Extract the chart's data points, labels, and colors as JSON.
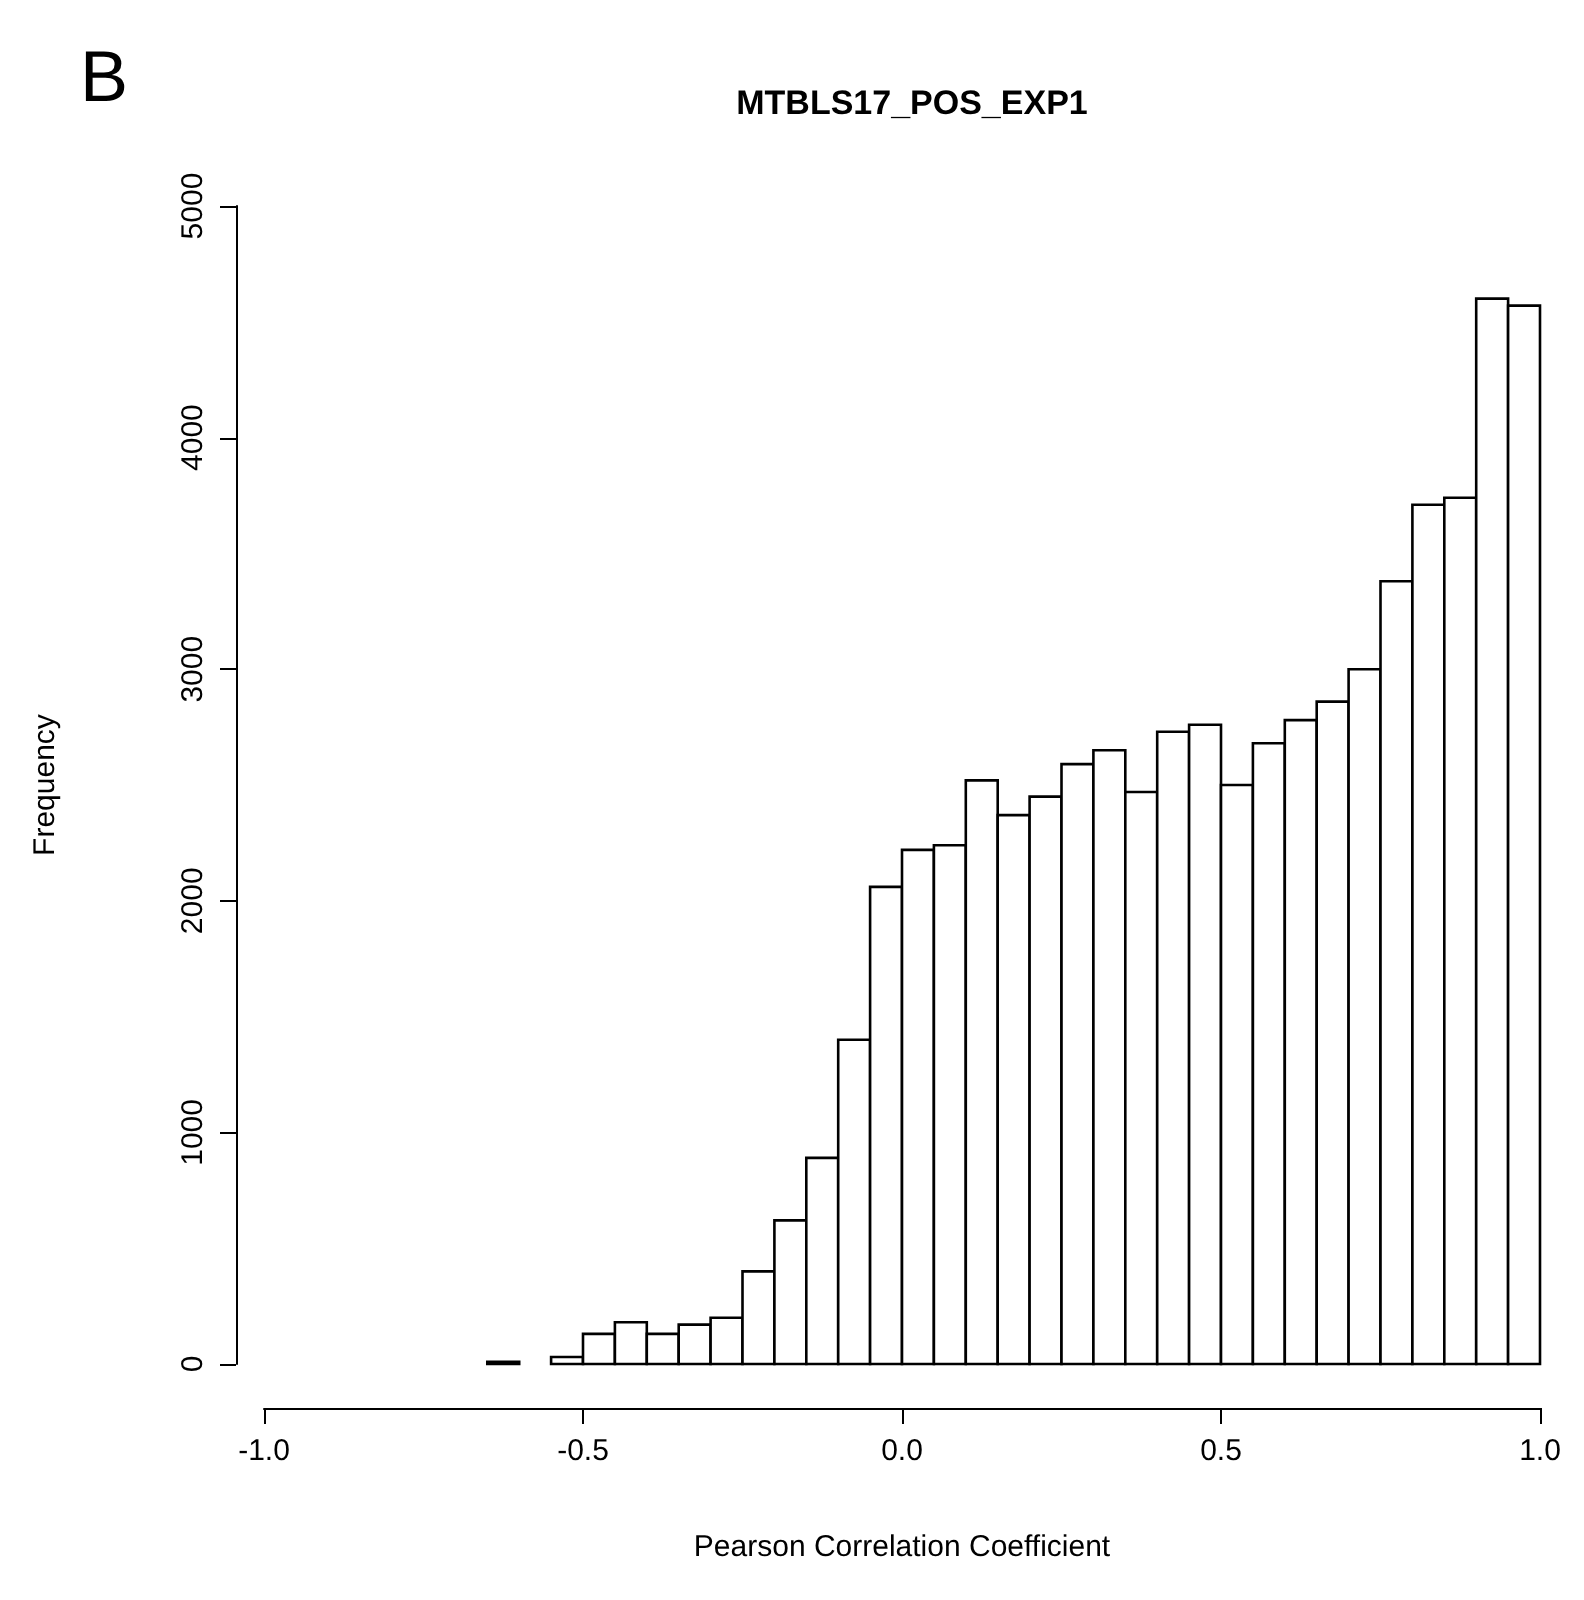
{
  "chart_data": {
    "type": "histogram",
    "title": "MTBLS17_POS_EXP1",
    "xlabel": "Pearson Correlation Coefficient",
    "ylabel": "Frequency",
    "annotations": [
      "B"
    ],
    "bins": [
      -0.65,
      -0.6,
      -0.55,
      -0.5,
      -0.45,
      -0.4,
      -0.35,
      -0.3,
      -0.25,
      -0.2,
      -0.15,
      -0.1,
      -0.05,
      0,
      0.05,
      0.1,
      0.15,
      0.2,
      0.25,
      0.3,
      0.35,
      0.4,
      0.45,
      0.5,
      0.55,
      0.6,
      0.65,
      0.7,
      0.75,
      0.8,
      0.85,
      0.9,
      0.95,
      1.0
    ],
    "values": [
      10,
      0,
      30,
      130,
      180,
      130,
      170,
      200,
      400,
      620,
      890,
      1400,
      2060,
      2220,
      2240,
      2520,
      2370,
      2450,
      2590,
      2650,
      2470,
      2730,
      2760,
      2500,
      2680,
      2780,
      2860,
      3000,
      3380,
      3710,
      3740,
      4600,
      4570
    ],
    "color": "#ffffff",
    "xlim": [
      -1,
      1
    ],
    "xticks": [
      {
        "value": -1,
        "label": "-1.0"
      },
      {
        "value": -0.5,
        "label": "-0.5"
      },
      {
        "value": 0,
        "label": "0.0"
      },
      {
        "value": 0.5,
        "label": "0.5"
      },
      {
        "value": 1,
        "label": "1.0"
      }
    ],
    "ylim": [
      0,
      5000
    ],
    "yticks": [
      0,
      1000,
      2000,
      3000,
      4000,
      5000
    ],
    "grid": false
  }
}
